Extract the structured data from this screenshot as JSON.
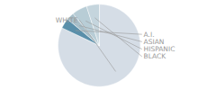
{
  "chart_data": {
    "type": "pie",
    "categories": [
      "WHITE",
      "A.I.",
      "ASIAN",
      "HISPANIC",
      "BLACK"
    ],
    "values": [
      82,
      4,
      3,
      6,
      5
    ],
    "colors": [
      "#d5dde6",
      "#5a8faa",
      "#a8bfc9",
      "#b8cdd6",
      "#c5d5dd"
    ]
  }
}
